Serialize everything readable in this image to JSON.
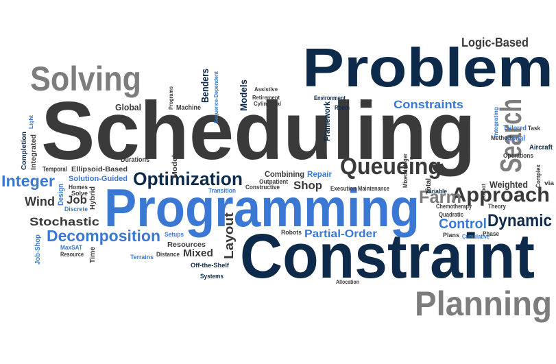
{
  "palette": {
    "navy": "#0d2a4a",
    "dark_gray": "#3a3a3a",
    "gray": "#7d7d7d",
    "blue": "#3a78d4",
    "background": "#ffffff"
  },
  "words": [
    {
      "text": "Problem",
      "color": "navy"
    },
    {
      "text": "Scheduling",
      "color": "dark_gray"
    },
    {
      "text": "Constraint",
      "color": "navy"
    },
    {
      "text": "Programming",
      "color": "blue"
    },
    {
      "text": "Planning",
      "color": "gray"
    },
    {
      "text": "Solving",
      "color": "gray"
    },
    {
      "text": "Logic-Based",
      "color": "dark_gray"
    },
    {
      "text": "Search",
      "color": "gray"
    },
    {
      "text": "Queueing",
      "color": "dark_gray"
    },
    {
      "text": "Optimization",
      "color": "navy"
    },
    {
      "text": "Approach",
      "color": "dark_gray"
    },
    {
      "text": "Decomposition",
      "color": "blue"
    },
    {
      "text": "Dynamic",
      "color": "navy"
    },
    {
      "text": "Constraints",
      "color": "blue"
    },
    {
      "text": "Integer",
      "color": "blue"
    },
    {
      "text": "Stochastic",
      "color": "dark_gray"
    },
    {
      "text": "Wind",
      "color": "dark_gray"
    },
    {
      "text": "Partial-Order",
      "color": "blue"
    },
    {
      "text": "Farm",
      "color": "gray"
    },
    {
      "text": "Control",
      "color": "blue"
    },
    {
      "text": "Shop",
      "color": "dark_gray"
    },
    {
      "text": "Weighted",
      "color": "dark_gray"
    },
    {
      "text": "Layout",
      "color": "dark_gray"
    },
    {
      "text": "Job",
      "color": "dark_gray"
    },
    {
      "text": "Mixed",
      "color": "dark_gray"
    },
    {
      "text": "Combining",
      "color": "dark_gray"
    },
    {
      "text": "Repair",
      "color": "blue"
    },
    {
      "text": "Framework",
      "color": "navy"
    },
    {
      "text": "Benders",
      "color": "navy"
    },
    {
      "text": "Models",
      "color": "navy"
    },
    {
      "text": "Global",
      "color": "dark_gray"
    },
    {
      "text": "Machine",
      "color": "dark_gray"
    },
    {
      "text": "Sequence-Dependent",
      "color": "blue"
    },
    {
      "text": "Solution-Guided",
      "color": "blue"
    },
    {
      "text": "Ellipsoid-Based",
      "color": "dark_gray"
    },
    {
      "text": "Temporal",
      "color": "dark_gray"
    },
    {
      "text": "Durations",
      "color": "dark_gray"
    },
    {
      "text": "Integrated",
      "color": "dark_gray"
    },
    {
      "text": "Completion",
      "color": "navy"
    },
    {
      "text": "Design",
      "color": "blue"
    },
    {
      "text": "Homes",
      "color": "dark_gray"
    },
    {
      "text": "Solve",
      "color": "dark_gray"
    },
    {
      "text": "Hybrid",
      "color": "dark_gray"
    },
    {
      "text": "Discrete",
      "color": "blue"
    },
    {
      "text": "Job-Shop",
      "color": "blue"
    },
    {
      "text": "MaxSAT",
      "color": "blue"
    },
    {
      "text": "Resource",
      "color": "dark_gray"
    },
    {
      "text": "Time",
      "color": "dark_gray"
    },
    {
      "text": "Terrains",
      "color": "blue"
    },
    {
      "text": "Distance",
      "color": "dark_gray"
    },
    {
      "text": "Resources",
      "color": "dark_gray"
    },
    {
      "text": "Setups",
      "color": "blue"
    },
    {
      "text": "Off-the-Shelf",
      "color": "navy"
    },
    {
      "text": "Systems",
      "color": "navy"
    },
    {
      "text": "Transition",
      "color": "blue"
    },
    {
      "text": "Constructive",
      "color": "dark_gray"
    },
    {
      "text": "Outpatient",
      "color": "dark_gray"
    },
    {
      "text": "Robots",
      "color": "dark_gray"
    },
    {
      "text": "Execution",
      "color": "dark_gray"
    },
    {
      "text": "Maintenance",
      "color": "dark_gray"
    },
    {
      "text": "Variable",
      "color": "navy"
    },
    {
      "text": "Chemotherapy",
      "color": "dark_gray"
    },
    {
      "text": "Quadratic",
      "color": "dark_gray"
    },
    {
      "text": "Cumulative",
      "color": "blue"
    },
    {
      "text": "Plans",
      "color": "dark_gray"
    },
    {
      "text": "Phase",
      "color": "dark_gray"
    },
    {
      "text": "Theory",
      "color": "dark_gray"
    },
    {
      "text": "Methods",
      "color": "dark_gray"
    },
    {
      "text": "Local",
      "color": "blue"
    },
    {
      "text": "Tailored",
      "color": "blue"
    },
    {
      "text": "Aircraft",
      "color": "navy"
    },
    {
      "text": "Operations",
      "color": "dark_gray"
    },
    {
      "text": "Complex",
      "color": "dark_gray"
    },
    {
      "text": "via",
      "color": "dark_gray"
    },
    {
      "text": "Integrating",
      "color": "blue"
    },
    {
      "text": "Environment",
      "color": "navy"
    },
    {
      "text": "Room",
      "color": "navy"
    },
    {
      "text": "Retirement",
      "color": "dark_gray"
    },
    {
      "text": "Cylindrical",
      "color": "dark_gray"
    },
    {
      "text": "Assistive",
      "color": "dark_gray"
    },
    {
      "text": "Mixed-Integer",
      "color": "dark_gray"
    },
    {
      "text": "Total",
      "color": "dark_gray"
    },
    {
      "text": "Model",
      "color": "dark_gray"
    },
    {
      "text": "Allocation",
      "color": "dark_gray"
    },
    {
      "text": "Light",
      "color": "blue"
    },
    {
      "text": "Programs",
      "color": "dark_gray"
    },
    {
      "text": "Task",
      "color": "dark_gray"
    },
    {
      "text": "Robot",
      "color": "dark_gray"
    }
  ]
}
